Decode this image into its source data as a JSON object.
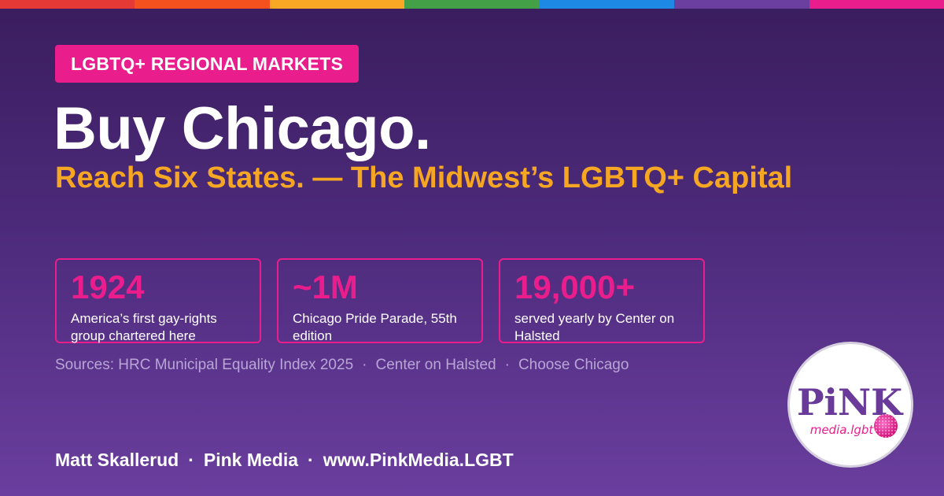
{
  "colors": {
    "accent_pink": "#e91e8c",
    "accent_orange": "#f5a623",
    "rainbow": [
      "#e53935",
      "#f4511e",
      "#f9a825",
      "#43a047",
      "#1e88e5",
      "#6a3fa0",
      "#e91e8c"
    ]
  },
  "tag": {
    "label": "LGBTQ+ REGIONAL MARKETS"
  },
  "headline": {
    "title": "Buy Chicago.",
    "subtitle": "Reach Six States. — The Midwest’s LGBTQ+ Capital"
  },
  "stats": [
    {
      "value": "1924",
      "description": "America’s first gay-rights group chartered here"
    },
    {
      "value": "~1M",
      "description": "Chicago Pride Parade, 55th edition"
    },
    {
      "value": "19,000+",
      "description": "served yearly by Center on Halsted"
    }
  ],
  "sources": {
    "items": [
      "Sources: HRC Municipal Equality Index 2025",
      "Center on Halsted",
      "Choose Chicago"
    ],
    "separator": "·"
  },
  "footer": {
    "author": "Matt Skallerud",
    "company": "Pink Media",
    "website": "www.PinkMedia.LGBT",
    "separator": "·"
  },
  "logo": {
    "wordmark_top": "PiNK",
    "wordmark_bottom": "media.lgbt",
    "icon": "pink-media-logo"
  }
}
